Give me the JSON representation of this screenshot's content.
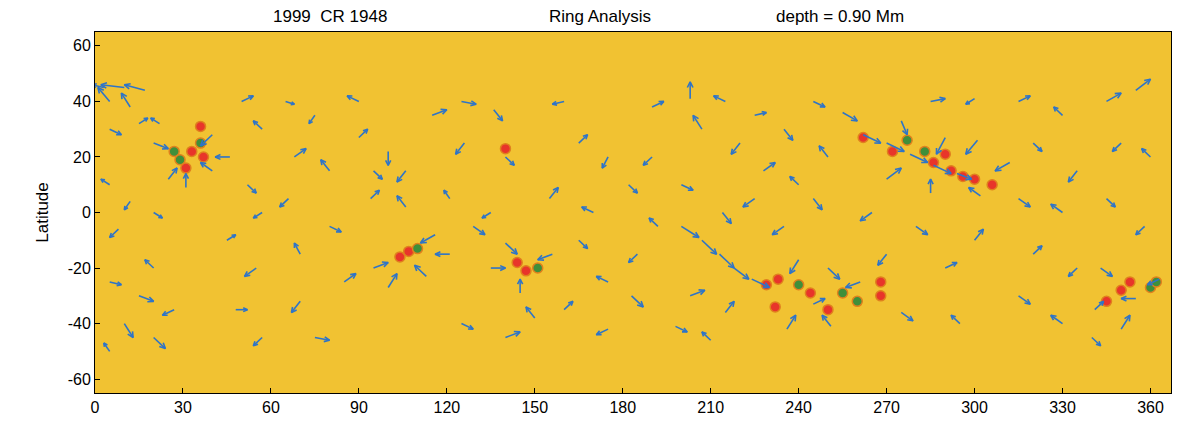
{
  "chart_data": {
    "type": "vector_field",
    "title_parts": [
      "1999  CR 1948",
      "Ring Analysis",
      "depth = 0.90 Mm"
    ],
    "y_label": "Latitude",
    "xlim": [
      0,
      367
    ],
    "ylim": [
      -65,
      65
    ],
    "xticks": [
      0,
      30,
      60,
      90,
      120,
      150,
      180,
      210,
      240,
      270,
      300,
      330,
      360
    ],
    "yticks": [
      -60,
      -40,
      -20,
      0,
      20,
      40,
      60
    ],
    "grid": false,
    "background": "#f1c232",
    "color": "#2e74c8",
    "vectors": [
      [
        3,
        45,
        -4,
        1
      ],
      [
        10,
        45,
        -8,
        1
      ],
      [
        17,
        44,
        -7,
        2
      ],
      [
        5,
        40,
        -4,
        5
      ],
      [
        12,
        38,
        -3,
        5
      ],
      [
        5,
        30,
        4,
        -2
      ],
      [
        15,
        32,
        3,
        2
      ],
      [
        22,
        32,
        -3,
        2
      ],
      [
        20,
        25,
        5,
        -2
      ],
      [
        40,
        28,
        -4,
        -4
      ],
      [
        40,
        15,
        -4,
        3
      ],
      [
        25,
        12,
        3,
        4
      ],
      [
        46,
        20,
        -5,
        0
      ],
      [
        31,
        9,
        0,
        5
      ],
      [
        5,
        10,
        -3,
        2
      ],
      [
        12,
        4,
        -2,
        -3
      ],
      [
        20,
        0,
        3,
        -2
      ],
      [
        8,
        -6,
        -3,
        -3
      ],
      [
        5,
        -25,
        4,
        -1
      ],
      [
        15,
        -30,
        5,
        -2
      ],
      [
        10,
        -40,
        3,
        -5
      ],
      [
        5,
        -50,
        -2,
        3
      ],
      [
        20,
        -45,
        4,
        -4
      ],
      [
        27,
        -35,
        -4,
        -2
      ],
      [
        20,
        -20,
        -3,
        3
      ],
      [
        50,
        40,
        4,
        2
      ],
      [
        57,
        30,
        -3,
        3
      ],
      [
        52,
        10,
        3,
        -3
      ],
      [
        57,
        0,
        -3,
        -2
      ],
      [
        45,
        -10,
        3,
        2
      ],
      [
        55,
        -20,
        -4,
        -3
      ],
      [
        48,
        -35,
        4,
        0
      ],
      [
        57,
        -45,
        -3,
        -3
      ],
      [
        65,
        40,
        3,
        -1
      ],
      [
        75,
        35,
        -2,
        -3
      ],
      [
        68,
        20,
        4,
        3
      ],
      [
        80,
        15,
        -3,
        4
      ],
      [
        66,
        5,
        -3,
        -3
      ],
      [
        80,
        -5,
        4,
        -2
      ],
      [
        70,
        -15,
        -2,
        4
      ],
      [
        85,
        -25,
        4,
        3
      ],
      [
        70,
        -32,
        -3,
        -4
      ],
      [
        75,
        -45,
        5,
        -1
      ],
      [
        90,
        40,
        -4,
        2
      ],
      [
        90,
        27,
        3,
        3
      ],
      [
        95,
        15,
        3,
        -3
      ],
      [
        106,
        15,
        -3,
        -4
      ],
      [
        94,
        5,
        3,
        3
      ],
      [
        106,
        2,
        -3,
        4
      ],
      [
        100,
        22,
        0,
        -5
      ],
      [
        95,
        -20,
        5,
        2
      ],
      [
        116,
        -8,
        -5,
        -3
      ],
      [
        100,
        -27,
        3,
        5
      ],
      [
        113,
        -23,
        -4,
        4
      ],
      [
        121,
        -15,
        -5,
        0
      ],
      [
        115,
        35,
        5,
        2
      ],
      [
        125,
        40,
        5,
        -1
      ],
      [
        136,
        37,
        3,
        -4
      ],
      [
        126,
        25,
        -3,
        -4
      ],
      [
        140,
        20,
        3,
        -3
      ],
      [
        121,
        5,
        -2,
        3
      ],
      [
        135,
        0,
        -3,
        -2
      ],
      [
        129,
        -5,
        4,
        -3
      ],
      [
        135,
        -20,
        5,
        0
      ],
      [
        145,
        -29,
        0,
        5
      ],
      [
        156,
        -15,
        -5,
        -2
      ],
      [
        140,
        -11,
        4,
        -4
      ],
      [
        125,
        -40,
        4,
        -2
      ],
      [
        140,
        -45,
        5,
        2
      ],
      [
        150,
        -38,
        -3,
        4
      ],
      [
        160,
        40,
        -4,
        -1
      ],
      [
        165,
        25,
        3,
        3
      ],
      [
        175,
        20,
        -2,
        -4
      ],
      [
        155,
        5,
        3,
        4
      ],
      [
        170,
        0,
        -4,
        2
      ],
      [
        182,
        10,
        3,
        -3
      ],
      [
        165,
        -10,
        3,
        -3
      ],
      [
        175,
        -25,
        -4,
        2
      ],
      [
        160,
        -35,
        3,
        3
      ],
      [
        175,
        -42,
        -4,
        -2
      ],
      [
        183,
        -30,
        4,
        -4
      ],
      [
        190,
        38,
        4,
        2
      ],
      [
        203,
        41,
        0,
        6
      ],
      [
        207,
        30,
        -3,
        5
      ],
      [
        190,
        20,
        -3,
        -3
      ],
      [
        200,
        10,
        4,
        -2
      ],
      [
        192,
        -5,
        -3,
        3
      ],
      [
        185,
        -15,
        -3,
        -3
      ],
      [
        200,
        -5,
        6,
        -4
      ],
      [
        207,
        -10,
        5,
        -5
      ],
      [
        213,
        -15,
        5,
        -5
      ],
      [
        218,
        -20,
        5,
        -4
      ],
      [
        224,
        -24,
        6,
        -3
      ],
      [
        203,
        -30,
        5,
        2
      ],
      [
        215,
        -36,
        3,
        4
      ],
      [
        198,
        -41,
        4,
        -2
      ],
      [
        210,
        -46,
        -3,
        3
      ],
      [
        215,
        40,
        -4,
        2
      ],
      [
        225,
        35,
        4,
        1
      ],
      [
        220,
        25,
        -3,
        -4
      ],
      [
        235,
        30,
        3,
        -4
      ],
      [
        228,
        15,
        4,
        3
      ],
      [
        240,
        10,
        -3,
        3
      ],
      [
        225,
        5,
        -4,
        -3
      ],
      [
        214,
        0,
        3,
        -4
      ],
      [
        235,
        -5,
        -4,
        -3
      ],
      [
        240,
        -17,
        -3,
        -5
      ],
      [
        250,
        -20,
        4,
        -4
      ],
      [
        236,
        -42,
        3,
        5
      ],
      [
        251,
        -41,
        -3,
        4
      ],
      [
        261,
        -25,
        -5,
        -2
      ],
      [
        245,
        -33,
        4,
        2
      ],
      [
        245,
        40,
        4,
        -2
      ],
      [
        255,
        36,
        5,
        -3
      ],
      [
        250,
        20,
        -3,
        4
      ],
      [
        245,
        5,
        3,
        -4
      ],
      [
        262,
        28,
        6,
        -3
      ],
      [
        270,
        25,
        6,
        -3
      ],
      [
        278,
        21,
        6,
        -3
      ],
      [
        286,
        17,
        6,
        -3
      ],
      [
        294,
        14,
        5,
        -2
      ],
      [
        302,
        6,
        -4,
        3
      ],
      [
        275,
        33,
        2,
        -5
      ],
      [
        290,
        27,
        -3,
        -6
      ],
      [
        270,
        12,
        5,
        4
      ],
      [
        285,
        7,
        0,
        5
      ],
      [
        312,
        18,
        -5,
        -3
      ],
      [
        301,
        26,
        -4,
        -5
      ],
      [
        265,
        0,
        -4,
        -3
      ],
      [
        280,
        -5,
        4,
        -3
      ],
      [
        270,
        -15,
        -3,
        -4
      ],
      [
        290,
        -20,
        4,
        2
      ],
      [
        275,
        -36,
        4,
        -3
      ],
      [
        295,
        -40,
        -3,
        3
      ],
      [
        300,
        -10,
        3,
        4
      ],
      [
        285,
        40,
        5,
        1
      ],
      [
        300,
        41,
        -3,
        -2
      ],
      [
        315,
        40,
        4,
        2
      ],
      [
        330,
        35,
        -3,
        3
      ],
      [
        320,
        25,
        3,
        -3
      ],
      [
        335,
        15,
        -3,
        -4
      ],
      [
        315,
        5,
        4,
        -3
      ],
      [
        330,
        0,
        -4,
        3
      ],
      [
        320,
        -15,
        3,
        3
      ],
      [
        335,
        -20,
        -3,
        -3
      ],
      [
        315,
        -30,
        4,
        -3
      ],
      [
        330,
        -40,
        -4,
        3
      ],
      [
        340,
        -45,
        3,
        -3
      ],
      [
        345,
        40,
        5,
        3
      ],
      [
        355,
        44,
        5,
        4
      ],
      [
        350,
        25,
        -3,
        -3
      ],
      [
        360,
        20,
        -3,
        3
      ],
      [
        345,
        5,
        3,
        -3
      ],
      [
        358,
        -5,
        -3,
        -3
      ],
      [
        343,
        -20,
        4,
        -3
      ],
      [
        355,
        -31,
        -5,
        0
      ],
      [
        350,
        -42,
        3,
        5
      ],
      [
        363,
        -24,
        -4,
        -2
      ],
      [
        341,
        -35,
        3,
        3
      ]
    ],
    "spots": [
      {
        "color": "#e8352a",
        "points": [
          [
            33,
            22
          ],
          [
            37,
            20
          ],
          [
            31,
            16
          ],
          [
            36,
            31
          ],
          [
            104,
            -16
          ],
          [
            107,
            -14
          ],
          [
            144,
            -18
          ],
          [
            147,
            -21
          ],
          [
            229,
            -26
          ],
          [
            233,
            -24
          ],
          [
            244,
            -29
          ],
          [
            232,
            -34
          ],
          [
            268,
            -25
          ],
          [
            268,
            -30
          ],
          [
            262,
            27
          ],
          [
            272,
            22
          ],
          [
            286,
            18
          ],
          [
            290,
            21
          ],
          [
            292,
            15
          ],
          [
            296,
            13
          ],
          [
            300,
            12
          ],
          [
            306,
            10
          ],
          [
            350,
            -28
          ],
          [
            353,
            -25
          ],
          [
            345,
            -32
          ],
          [
            140,
            23
          ],
          [
            250,
            -35
          ]
        ]
      },
      {
        "color": "#3f8f3a",
        "points": [
          [
            27,
            22
          ],
          [
            29,
            19
          ],
          [
            36,
            25
          ],
          [
            110,
            -13
          ],
          [
            151,
            -20
          ],
          [
            240,
            -26
          ],
          [
            255,
            -29
          ],
          [
            260,
            -32
          ],
          [
            277,
            26
          ],
          [
            283,
            22
          ],
          [
            360,
            -27
          ],
          [
            362,
            -25
          ]
        ]
      }
    ]
  }
}
